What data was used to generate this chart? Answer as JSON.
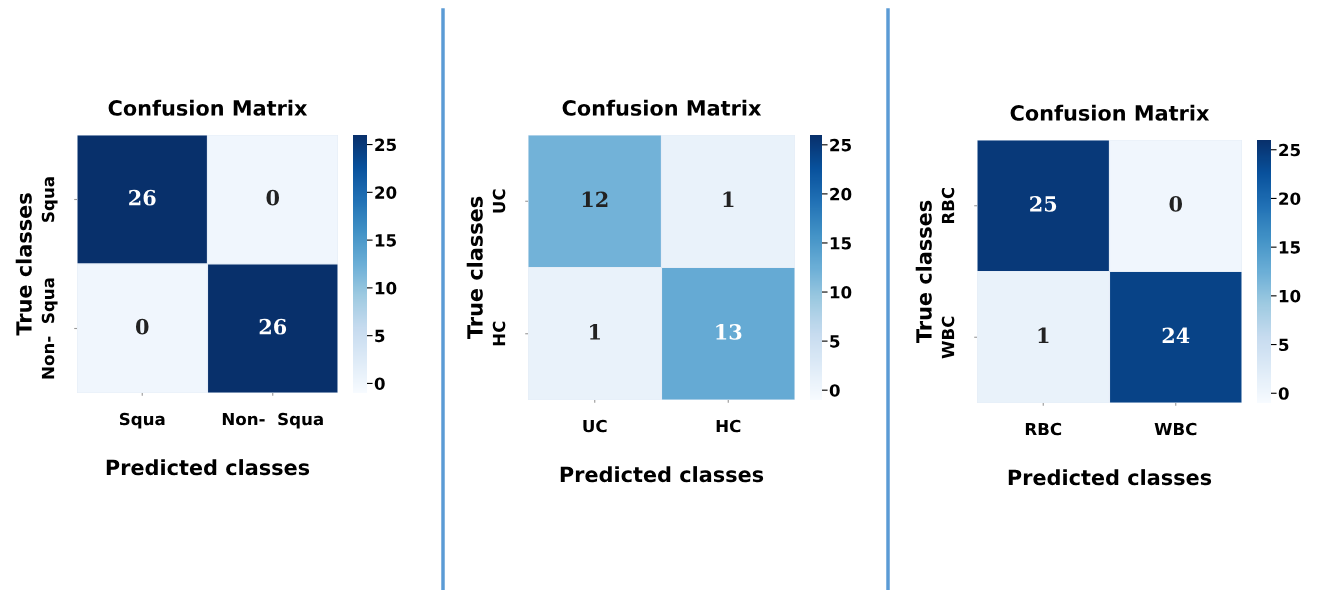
{
  "chart_data": [
    {
      "type": "heatmap",
      "title": "Confusion Matrix",
      "xlabel": "Predicted classes",
      "ylabel": "True classes",
      "categories": [
        "Squa",
        "Non-  Squa"
      ],
      "y_categories": [
        "Squa",
        "Non-  Squa"
      ],
      "cells": [
        [
          26,
          0
        ],
        [
          0,
          26
        ]
      ],
      "data_labels": true,
      "clim": [
        -1,
        26
      ],
      "cticks": [
        0,
        5,
        10,
        15,
        20,
        25
      ]
    },
    {
      "type": "heatmap",
      "title": "Confusion Matrix",
      "xlabel": "Predicted classes",
      "ylabel": "True classes",
      "categories": [
        "UC",
        "HC"
      ],
      "y_categories": [
        "UC",
        "HC"
      ],
      "cells": [
        [
          12,
          1
        ],
        [
          1,
          13
        ]
      ],
      "data_labels": true,
      "clim": [
        -1,
        26
      ],
      "cticks": [
        0,
        5,
        10,
        15,
        20,
        25
      ]
    },
    {
      "type": "heatmap",
      "title": "Confusion Matrix",
      "xlabel": "Predicted classes",
      "ylabel": "True classes",
      "categories": [
        "RBC",
        "WBC"
      ],
      "y_categories": [
        "RBC",
        "WBC"
      ],
      "cells": [
        [
          25,
          0
        ],
        [
          1,
          24
        ]
      ],
      "data_labels": true,
      "clim": [
        -1,
        26
      ],
      "cticks": [
        0,
        5,
        10,
        15,
        20,
        25
      ]
    }
  ]
}
